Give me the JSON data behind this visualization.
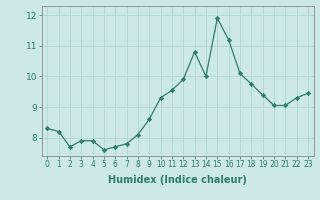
{
  "x": [
    0,
    1,
    2,
    3,
    4,
    5,
    6,
    7,
    8,
    9,
    10,
    11,
    12,
    13,
    14,
    15,
    16,
    17,
    18,
    19,
    20,
    21,
    22,
    23
  ],
  "y": [
    8.3,
    8.2,
    7.7,
    7.9,
    7.9,
    7.6,
    7.7,
    7.8,
    8.1,
    8.6,
    9.3,
    9.55,
    9.9,
    10.8,
    10.0,
    11.9,
    11.2,
    10.1,
    9.75,
    9.4,
    9.05,
    9.05,
    9.3,
    9.45
  ],
  "xlabel": "Humidex (Indice chaleur)",
  "ylim": [
    7.4,
    12.3
  ],
  "xlim": [
    -0.5,
    23.5
  ],
  "yticks": [
    8,
    9,
    10,
    11,
    12
  ],
  "line_color": "#2e7d6e",
  "marker": "D",
  "marker_size": 2.2,
  "bg_color": "#cce8e8",
  "grid_color": "#b0d4d4",
  "spine_color": "#888888"
}
